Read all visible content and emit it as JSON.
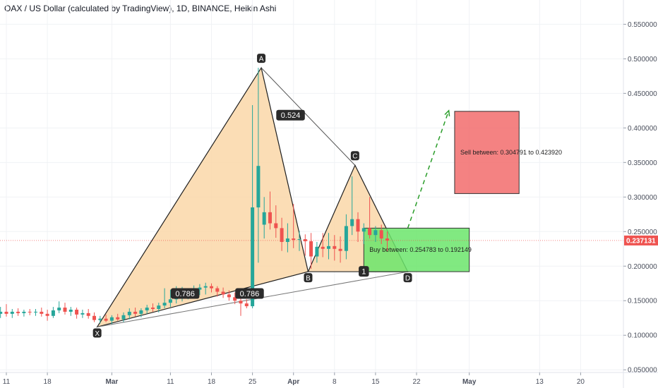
{
  "title": "OAX / US Dollar (calculated by TradingView), 1D, BINANCE, Heikin Ashi",
  "chart_data": {
    "type": "candlestick",
    "symbol": "OAX / US Dollar (calculated by TradingView)",
    "interval": "1D",
    "exchange": "BINANCE",
    "style": "Heikin Ashi",
    "ylim": [
      0.04,
      0.58
    ],
    "xlim_days": [
      -1,
      81
    ],
    "y_ticks": [
      "0.550000",
      "0.500000",
      "0.450000",
      "0.400000",
      "0.350000",
      "0.300000",
      "0.250000",
      "0.200000",
      "0.150000",
      "0.100000",
      "0.050000"
    ],
    "x_ticks": [
      {
        "label": "11",
        "day": 0,
        "bold": false
      },
      {
        "label": "18",
        "day": 7,
        "bold": false
      },
      {
        "label": "Mar",
        "day": 18,
        "bold": true
      },
      {
        "label": "11",
        "day": 28,
        "bold": false
      },
      {
        "label": "18",
        "day": 35,
        "bold": false
      },
      {
        "label": "25",
        "day": 42,
        "bold": false
      },
      {
        "label": "Apr",
        "day": 49,
        "bold": true
      },
      {
        "label": "8",
        "day": 56,
        "bold": false
      },
      {
        "label": "15",
        "day": 63,
        "bold": false
      },
      {
        "label": "22",
        "day": 70,
        "bold": false
      },
      {
        "label": "May",
        "day": 79,
        "bold": true
      },
      {
        "label": "13",
        "day": 91,
        "bold": false
      },
      {
        "label": "20",
        "day": 98,
        "bold": false
      }
    ],
    "current_price": {
      "label": "0.237131",
      "value": 0.237131
    },
    "candles": [
      {
        "d": -1,
        "o": 0.131,
        "h": 0.141,
        "l": 0.125,
        "c": 0.134
      },
      {
        "d": 0,
        "o": 0.134,
        "h": 0.145,
        "l": 0.127,
        "c": 0.131
      },
      {
        "d": 1,
        "o": 0.131,
        "h": 0.138,
        "l": 0.125,
        "c": 0.134
      },
      {
        "d": 2,
        "o": 0.134,
        "h": 0.139,
        "l": 0.128,
        "c": 0.132
      },
      {
        "d": 3,
        "o": 0.132,
        "h": 0.137,
        "l": 0.127,
        "c": 0.134
      },
      {
        "d": 4,
        "o": 0.134,
        "h": 0.138,
        "l": 0.129,
        "c": 0.133
      },
      {
        "d": 5,
        "o": 0.133,
        "h": 0.138,
        "l": 0.128,
        "c": 0.134
      },
      {
        "d": 6,
        "o": 0.134,
        "h": 0.14,
        "l": 0.127,
        "c": 0.131
      },
      {
        "d": 7,
        "o": 0.131,
        "h": 0.137,
        "l": 0.121,
        "c": 0.128
      },
      {
        "d": 8,
        "o": 0.128,
        "h": 0.141,
        "l": 0.125,
        "c": 0.136
      },
      {
        "d": 9,
        "o": 0.136,
        "h": 0.149,
        "l": 0.132,
        "c": 0.14
      },
      {
        "d": 10,
        "o": 0.14,
        "h": 0.147,
        "l": 0.13,
        "c": 0.134
      },
      {
        "d": 11,
        "o": 0.134,
        "h": 0.141,
        "l": 0.128,
        "c": 0.137
      },
      {
        "d": 12,
        "o": 0.137,
        "h": 0.14,
        "l": 0.124,
        "c": 0.13
      },
      {
        "d": 13,
        "o": 0.13,
        "h": 0.137,
        "l": 0.125,
        "c": 0.132
      },
      {
        "d": 14,
        "o": 0.132,
        "h": 0.138,
        "l": 0.124,
        "c": 0.128
      },
      {
        "d": 15,
        "o": 0.128,
        "h": 0.133,
        "l": 0.119,
        "c": 0.122
      },
      {
        "d": 16,
        "o": 0.122,
        "h": 0.128,
        "l": 0.117,
        "c": 0.124
      },
      {
        "d": 17,
        "o": 0.124,
        "h": 0.13,
        "l": 0.119,
        "c": 0.121
      },
      {
        "d": 18,
        "o": 0.121,
        "h": 0.129,
        "l": 0.116,
        "c": 0.126
      },
      {
        "d": 19,
        "o": 0.126,
        "h": 0.131,
        "l": 0.121,
        "c": 0.123
      },
      {
        "d": 20,
        "o": 0.123,
        "h": 0.133,
        "l": 0.119,
        "c": 0.129
      },
      {
        "d": 21,
        "o": 0.129,
        "h": 0.139,
        "l": 0.123,
        "c": 0.134
      },
      {
        "d": 22,
        "o": 0.134,
        "h": 0.14,
        "l": 0.127,
        "c": 0.131
      },
      {
        "d": 23,
        "o": 0.131,
        "h": 0.139,
        "l": 0.126,
        "c": 0.136
      },
      {
        "d": 24,
        "o": 0.136,
        "h": 0.144,
        "l": 0.131,
        "c": 0.14
      },
      {
        "d": 25,
        "o": 0.14,
        "h": 0.146,
        "l": 0.134,
        "c": 0.138
      },
      {
        "d": 26,
        "o": 0.138,
        "h": 0.147,
        "l": 0.133,
        "c": 0.143
      },
      {
        "d": 27,
        "o": 0.143,
        "h": 0.168,
        "l": 0.139,
        "c": 0.147
      },
      {
        "d": 28,
        "o": 0.147,
        "h": 0.166,
        "l": 0.141,
        "c": 0.152
      },
      {
        "d": 29,
        "o": 0.152,
        "h": 0.171,
        "l": 0.146,
        "c": 0.157
      },
      {
        "d": 30,
        "o": 0.157,
        "h": 0.17,
        "l": 0.149,
        "c": 0.159
      },
      {
        "d": 31,
        "o": 0.159,
        "h": 0.168,
        "l": 0.152,
        "c": 0.163
      },
      {
        "d": 32,
        "o": 0.163,
        "h": 0.172,
        "l": 0.156,
        "c": 0.166
      },
      {
        "d": 33,
        "o": 0.166,
        "h": 0.174,
        "l": 0.158,
        "c": 0.169
      },
      {
        "d": 34,
        "o": 0.169,
        "h": 0.176,
        "l": 0.159,
        "c": 0.171
      },
      {
        "d": 35,
        "o": 0.171,
        "h": 0.175,
        "l": 0.162,
        "c": 0.168
      },
      {
        "d": 36,
        "o": 0.168,
        "h": 0.171,
        "l": 0.156,
        "c": 0.163
      },
      {
        "d": 37,
        "o": 0.163,
        "h": 0.169,
        "l": 0.154,
        "c": 0.159
      },
      {
        "d": 38,
        "o": 0.159,
        "h": 0.165,
        "l": 0.15,
        "c": 0.155
      },
      {
        "d": 39,
        "o": 0.155,
        "h": 0.162,
        "l": 0.145,
        "c": 0.15
      },
      {
        "d": 40,
        "o": 0.15,
        "h": 0.157,
        "l": 0.128,
        "c": 0.146
      },
      {
        "d": 41,
        "o": 0.146,
        "h": 0.152,
        "l": 0.139,
        "c": 0.142
      },
      {
        "d": 42,
        "o": 0.142,
        "h": 0.433,
        "l": 0.139,
        "c": 0.285
      },
      {
        "d": 43,
        "o": 0.285,
        "h": 0.487,
        "l": 0.205,
        "c": 0.345
      },
      {
        "d": 44,
        "o": 0.26,
        "h": 0.3,
        "l": 0.24,
        "c": 0.278
      },
      {
        "d": 45,
        "o": 0.278,
        "h": 0.308,
        "l": 0.253,
        "c": 0.262
      },
      {
        "d": 46,
        "o": 0.262,
        "h": 0.288,
        "l": 0.241,
        "c": 0.255
      },
      {
        "d": 47,
        "o": 0.255,
        "h": 0.27,
        "l": 0.222,
        "c": 0.235
      },
      {
        "d": 48,
        "o": 0.235,
        "h": 0.262,
        "l": 0.22,
        "c": 0.24
      },
      {
        "d": 49,
        "o": 0.24,
        "h": 0.29,
        "l": 0.226,
        "c": 0.238
      },
      {
        "d": 50,
        "o": 0.238,
        "h": 0.251,
        "l": 0.222,
        "c": 0.239
      },
      {
        "d": 51,
        "o": 0.239,
        "h": 0.246,
        "l": 0.215,
        "c": 0.236
      },
      {
        "d": 52,
        "o": 0.236,
        "h": 0.248,
        "l": 0.196,
        "c": 0.214
      },
      {
        "d": 53,
        "o": 0.214,
        "h": 0.235,
        "l": 0.205,
        "c": 0.228
      },
      {
        "d": 54,
        "o": 0.228,
        "h": 0.248,
        "l": 0.213,
        "c": 0.225
      },
      {
        "d": 55,
        "o": 0.225,
        "h": 0.248,
        "l": 0.21,
        "c": 0.229
      },
      {
        "d": 56,
        "o": 0.229,
        "h": 0.245,
        "l": 0.208,
        "c": 0.225
      },
      {
        "d": 57,
        "o": 0.225,
        "h": 0.243,
        "l": 0.205,
        "c": 0.222
      },
      {
        "d": 58,
        "o": 0.222,
        "h": 0.275,
        "l": 0.21,
        "c": 0.258
      },
      {
        "d": 59,
        "o": 0.258,
        "h": 0.33,
        "l": 0.245,
        "c": 0.268
      },
      {
        "d": 60,
        "o": 0.268,
        "h": 0.278,
        "l": 0.235,
        "c": 0.25
      },
      {
        "d": 61,
        "o": 0.25,
        "h": 0.262,
        "l": 0.232,
        "c": 0.255
      },
      {
        "d": 62,
        "o": 0.255,
        "h": 0.3,
        "l": 0.24,
        "c": 0.245
      },
      {
        "d": 63,
        "o": 0.245,
        "h": 0.258,
        "l": 0.235,
        "c": 0.252
      },
      {
        "d": 64,
        "o": 0.252,
        "h": 0.26,
        "l": 0.232,
        "c": 0.24
      },
      {
        "d": 65,
        "o": 0.24,
        "h": 0.25,
        "l": 0.222,
        "c": 0.237
      }
    ],
    "pattern": {
      "points": [
        {
          "name": "X",
          "day": 15.5,
          "price": 0.112
        },
        {
          "name": "A",
          "day": 43.5,
          "price": 0.487
        },
        {
          "name": "B",
          "day": 51.5,
          "price": 0.192
        },
        {
          "name": "C",
          "day": 59.5,
          "price": 0.346
        },
        {
          "name": "D",
          "day": 68.5,
          "price": 0.192
        }
      ],
      "ratios": [
        {
          "label": "0.524",
          "day": 48.5,
          "price": 0.418
        },
        {
          "label": "0.786",
          "day": 30.5,
          "price": 0.16
        },
        {
          "label": "0.786",
          "day": 41.5,
          "price": 0.16
        },
        {
          "label": "1",
          "day": 61.0,
          "price": 0.192
        }
      ],
      "projection": {
        "from_day": 68.5,
        "from_price": 0.255,
        "to_day": 75.5,
        "to_price": 0.425
      }
    },
    "zones": [
      {
        "name": "sell",
        "label": "Sell between: 0.304791 to 0.423920",
        "top": 0.424,
        "bottom": 0.305,
        "start_day": 76.5,
        "end_day": 87.5,
        "color": "#f26c6c"
      },
      {
        "name": "buy",
        "label": "Buy between: 0.254783 to 0.192149",
        "top": 0.255,
        "bottom": 0.192,
        "start_day": 61.0,
        "end_day": 79.0,
        "color": "#6be56b"
      }
    ],
    "colors": {
      "up": "#26a69a",
      "down": "#ef5350",
      "pattern_fill": "#fad7a8",
      "pattern_line": "#1f1f1f",
      "projection": "#2a9d2a",
      "price_tag": "#ef5350"
    }
  }
}
